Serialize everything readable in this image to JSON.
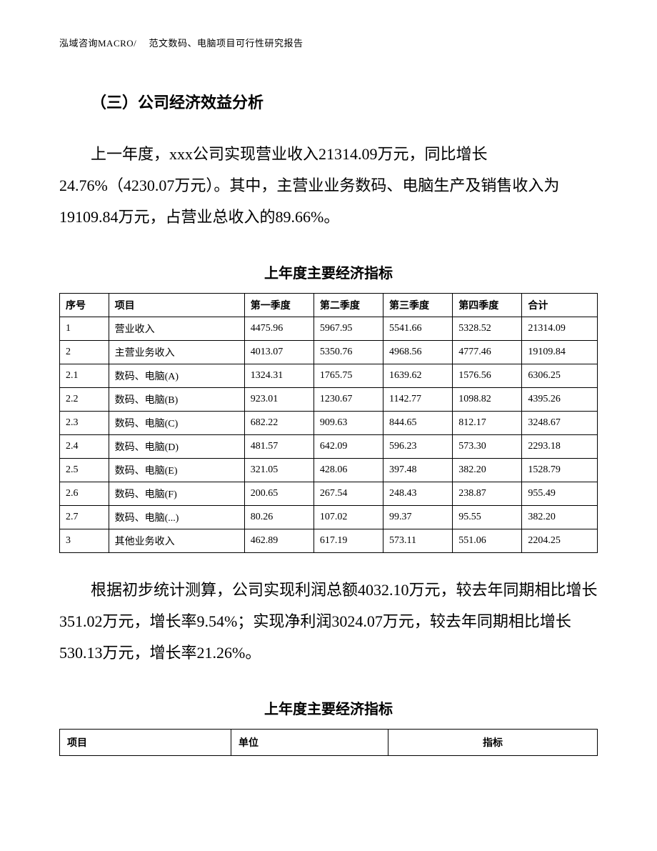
{
  "header": "泓域咨询MACRO/　 范文数码、电脑项目可行性研究报告",
  "section_heading": "（三）公司经济效益分析",
  "paragraph1": "上一年度，xxx公司实现营业收入21314.09万元，同比增长24.76%（4230.07万元）。其中，主营业业务数码、电脑生产及销售收入为19109.84万元，占营业总收入的89.66%。",
  "table1": {
    "title": "上年度主要经济指标",
    "columns": [
      "序号",
      "项目",
      "第一季度",
      "第二季度",
      "第三季度",
      "第四季度",
      "合计"
    ],
    "col_widths_class": [
      "col-num",
      "col-item",
      "col-q",
      "col-q",
      "col-q",
      "col-q",
      "col-total"
    ],
    "rows": [
      [
        "1",
        "营业收入",
        "4475.96",
        "5967.95",
        "5541.66",
        "5328.52",
        "21314.09"
      ],
      [
        "2",
        "主营业务收入",
        "4013.07",
        "5350.76",
        "4968.56",
        "4777.46",
        "19109.84"
      ],
      [
        "2.1",
        "数码、电脑(A)",
        "1324.31",
        "1765.75",
        "1639.62",
        "1576.56",
        "6306.25"
      ],
      [
        "2.2",
        "数码、电脑(B)",
        "923.01",
        "1230.67",
        "1142.77",
        "1098.82",
        "4395.26"
      ],
      [
        "2.3",
        "数码、电脑(C)",
        "682.22",
        "909.63",
        "844.65",
        "812.17",
        "3248.67"
      ],
      [
        "2.4",
        "数码、电脑(D)",
        "481.57",
        "642.09",
        "596.23",
        "573.30",
        "2293.18"
      ],
      [
        "2.5",
        "数码、电脑(E)",
        "321.05",
        "428.06",
        "397.48",
        "382.20",
        "1528.79"
      ],
      [
        "2.6",
        "数码、电脑(F)",
        "200.65",
        "267.54",
        "248.43",
        "238.87",
        "955.49"
      ],
      [
        "2.7",
        "数码、电脑(...)",
        "80.26",
        "107.02",
        "99.37",
        "95.55",
        "382.20"
      ],
      [
        "3",
        "其他业务收入",
        "462.89",
        "617.19",
        "573.11",
        "551.06",
        "2204.25"
      ]
    ]
  },
  "paragraph2": "根据初步统计测算，公司实现利润总额4032.10万元，较去年同期相比增长351.02万元，增长率9.54%；实现净利润3024.07万元，较去年同期相比增长530.13万元，增长率21.26%。",
  "table2": {
    "title": "上年度主要经济指标",
    "columns": [
      "项目",
      "单位",
      "指标"
    ]
  }
}
